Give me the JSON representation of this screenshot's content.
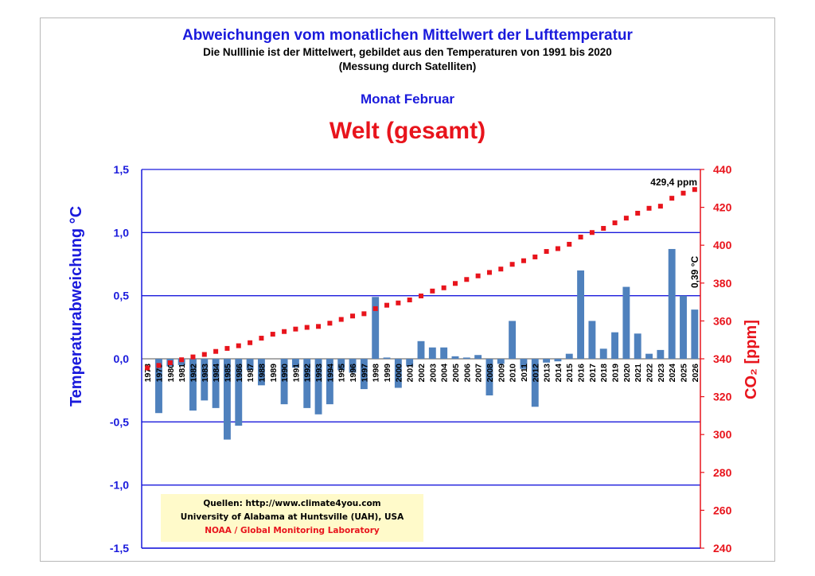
{
  "header": {
    "title": "Abweichungen vom monatlichen Mittelwert der Lufttemperatur",
    "subtitle1": "Die Nulllinie ist der Mittelwert, gebildet aus den Temperaturen von 1991 bis 2020",
    "subtitle2": "(Messung durch Satelliten)",
    "month": "Monat Februar",
    "region": "Welt (gesamt)"
  },
  "sources": {
    "line1": "Quellen: http://www.climate4you.com",
    "line2": "University of Alabama at Huntsville (UAH), USA",
    "line3": "NOAA / Global Monitoring Laboratory"
  },
  "colors": {
    "bars": "#4f81bd",
    "co2": "#e8141c",
    "axis_left": "#1a1adc",
    "grid": "#1a1adc"
  },
  "chart_data": {
    "type": "bar",
    "categories": [
      "1978",
      "1979",
      "1980",
      "1981",
      "1982",
      "1983",
      "1984",
      "1985",
      "1986",
      "1987",
      "1988",
      "1989",
      "1990",
      "1991",
      "1992",
      "1993",
      "1994",
      "1995",
      "1996",
      "1997",
      "1998",
      "1999",
      "2000",
      "2001",
      "2002",
      "2003",
      "2004",
      "2005",
      "2006",
      "2007",
      "2008",
      "2009",
      "2010",
      "2011",
      "2012",
      "2013",
      "2014",
      "2015",
      "2016",
      "2017",
      "2018",
      "2019",
      "2020",
      "2021",
      "2022",
      "2023",
      "2024",
      "2025",
      "2026"
    ],
    "series": [
      {
        "type": "bar",
        "axis": "left",
        "values": [
          null,
          -0.43,
          -0.06,
          -0.05,
          -0.41,
          -0.33,
          -0.39,
          -0.64,
          -0.53,
          -0.09,
          -0.21,
          null,
          -0.36,
          -0.07,
          -0.39,
          -0.44,
          -0.36,
          -0.09,
          -0.11,
          -0.24,
          0.49,
          0.01,
          -0.23,
          -0.06,
          0.14,
          0.09,
          0.09,
          0.02,
          0.01,
          0.03,
          -0.29,
          -0.04,
          0.3,
          -0.08,
          -0.38,
          -0.03,
          -0.02,
          0.04,
          0.7,
          0.3,
          0.08,
          0.21,
          0.57,
          0.2,
          0.04,
          0.07,
          0.87,
          0.5,
          0.39
        ]
      },
      {
        "type": "line",
        "axis": "right",
        "values": [
          335.2,
          336.5,
          337.9,
          339.5,
          341.0,
          342.3,
          343.9,
          345.5,
          346.9,
          348.5,
          350.9,
          353.0,
          354.4,
          355.7,
          356.6,
          357.1,
          358.8,
          360.8,
          362.6,
          363.8,
          366.5,
          368.3,
          369.5,
          371.1,
          373.2,
          375.8,
          377.5,
          379.8,
          381.9,
          383.8,
          385.6,
          387.4,
          389.9,
          391.8,
          393.8,
          396.7,
          398.2,
          400.5,
          404.3,
          406.7,
          408.9,
          411.8,
          414.3,
          416.9,
          419.5,
          420.6,
          424.8,
          427.5,
          429.4
        ]
      }
    ],
    "ylabel": "Temperaturabweichung °C",
    "y2label": "CO₂ [ppm]",
    "ylim": [
      -1.5,
      1.5
    ],
    "y2lim": [
      240,
      440
    ],
    "yticks": [
      "1,5",
      "1,0",
      "0,5",
      "0,0",
      "-0,5",
      "-1,0",
      "-1,5"
    ],
    "y2ticks": [
      "440",
      "420",
      "400",
      "380",
      "360",
      "340",
      "320",
      "300",
      "280",
      "260",
      "240"
    ],
    "annotations": {
      "co2_last": "429,4 ppm",
      "temp_last": "0,39 °C"
    },
    "grid": true
  }
}
